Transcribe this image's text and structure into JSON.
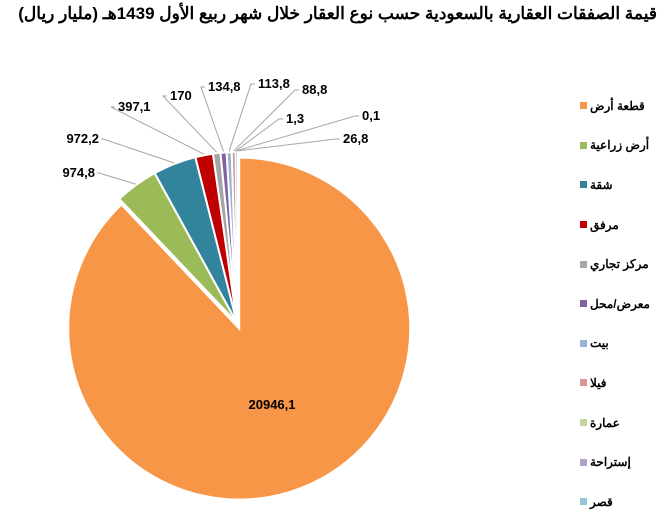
{
  "title": "قيمة الصفقات العقارية بالسعودية حسب نوع العقار خلال شهر ربيع الأول 1439هـ (مليار ريال)",
  "chart_data": {
    "type": "pie",
    "title": "قيمة الصفقات العقارية بالسعودية حسب نوع العقار خلال شهر ربيع الأول 1439هـ (مليار ريال)",
    "categories": [
      "قطعة أرض",
      "أرض زراعية",
      "شقة",
      "مرفق",
      "مركز تجاري",
      "معرض/محل",
      "بيت",
      "فيلا",
      "عمارة",
      "إستراحة",
      "قصر"
    ],
    "values": [
      20946.1,
      974.8,
      972.2,
      397.1,
      170,
      134.8,
      113.8,
      88.8,
      1.3,
      0.1,
      26.8
    ],
    "value_labels": [
      "20946,1",
      "974,8",
      "972,2",
      "397,1",
      "170",
      "134,8",
      "113,8",
      "88,8",
      "1,3",
      "0,1",
      "26,8"
    ],
    "colors": [
      "#F79646",
      "#9BBB59",
      "#31849B",
      "#C00000",
      "#A6A6A6",
      "#8064A2",
      "#95B3D7",
      "#D99694",
      "#C3D69B",
      "#B3A2C7",
      "#93C4D8"
    ],
    "legend_position": "right",
    "exploded": [
      0
    ]
  },
  "legend": [
    {
      "label": "قطعة أرض",
      "color": "#F79646"
    },
    {
      "label": "أرض زراعية",
      "color": "#9BBB59"
    },
    {
      "label": "شقة",
      "color": "#31849B"
    },
    {
      "label": "مرفق",
      "color": "#C00000"
    },
    {
      "label": "مركز تجاري",
      "color": "#A6A6A6"
    },
    {
      "label": "معرض/محل",
      "color": "#8064A2"
    },
    {
      "label": "بيت",
      "color": "#95B3D7"
    },
    {
      "label": "فيلا",
      "color": "#D99694"
    },
    {
      "label": "عمارة",
      "color": "#C3D69B"
    },
    {
      "label": "إستراحة",
      "color": "#B3A2C7"
    },
    {
      "label": "قصر",
      "color": "#93C4D8"
    }
  ]
}
